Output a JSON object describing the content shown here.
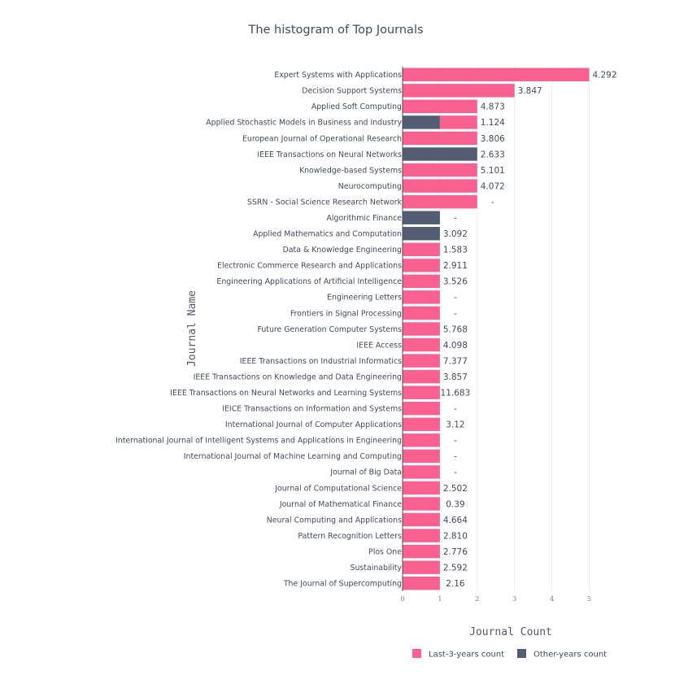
{
  "chart_data": {
    "type": "bar",
    "orientation": "horizontal",
    "stacked": true,
    "title": "The histogram of  Top Journals",
    "xlabel": "Journal Count",
    "ylabel": "Journal Name",
    "xlim": [
      0,
      5
    ],
    "xticks": [
      "0",
      "1",
      "2",
      "3",
      "4",
      "5"
    ],
    "grid": true,
    "legend_position": "bottom-right",
    "categories": [
      "Expert Systems with Applications",
      "Decision Support Systems",
      "Applied Soft Computing",
      "Applied Stochastic Models in Business and Industry",
      "European Journal of Operational Research",
      "IEEE Transactions on Neural Networks",
      "Knowledge-based Systems",
      "Neurocomputing",
      "SSRN - Social Science Research Network",
      "Algorithmic Finance",
      "Applied Mathematics and Computation",
      "Data & Knowledge Engineering",
      "Electronic Commerce Research and Applications",
      "Engineering Applications of Artificial Intelligence",
      "Engineering Letters",
      "Frontiers in Signal Processing",
      "Future Generation Computer Systems",
      "IEEE Access",
      "IEEE Transactions on Industrial Informatics",
      "IEEE Transactions on Knowledge and Data Engineering",
      "IEEE Transactions on Neural Networks and Learning Systems",
      "IEICE Transactions on Information and Systems",
      "International Journal of Computer Applications",
      "International Journal of Intelligent Systems and Applications in Engineering",
      "International Journal of Machine Learning and Computing",
      "Journal of Big Data",
      "Journal of Computational Science",
      "Journal of Mathematical Finance",
      "Neural Computing and Applications",
      "Pattern Recognition Letters",
      "Plos One",
      "Sustainability",
      "The Journal of Supercomputing"
    ],
    "series": [
      {
        "name": "Other-years count",
        "color": "#525d73",
        "values": [
          0,
          0,
          0,
          1,
          0,
          2,
          0,
          0,
          0,
          1,
          1,
          0,
          0,
          0,
          0,
          0,
          0,
          0,
          0,
          0,
          0,
          0,
          0,
          0,
          0,
          0,
          0,
          0,
          0,
          0,
          0,
          0,
          0
        ]
      },
      {
        "name": "Last-3-years count",
        "color": "#f76090",
        "values": [
          5,
          3,
          2,
          1,
          2,
          0,
          2,
          2,
          2,
          0,
          0,
          1,
          1,
          1,
          1,
          1,
          1,
          1,
          1,
          1,
          1,
          1,
          1,
          1,
          1,
          1,
          1,
          1,
          1,
          1,
          1,
          1,
          1
        ]
      }
    ],
    "annotations": [
      "4.292",
      "3.847",
      "4.873",
      "1.124",
      "3.806",
      "2.633",
      "5.101",
      "4.072",
      "-",
      "-",
      "3.092",
      "1.583",
      "2.911",
      "3.526",
      "-",
      "-",
      "5.768",
      "4.098",
      "7.377",
      "3.857",
      "11.683",
      "-",
      "3.12",
      "-",
      "-",
      "-",
      "2.502",
      "0.39",
      "4.664",
      "2.810",
      "2.776",
      "2.592",
      "2.16"
    ],
    "legend_order": [
      "Last-3-years count",
      "Other-years count"
    ]
  }
}
